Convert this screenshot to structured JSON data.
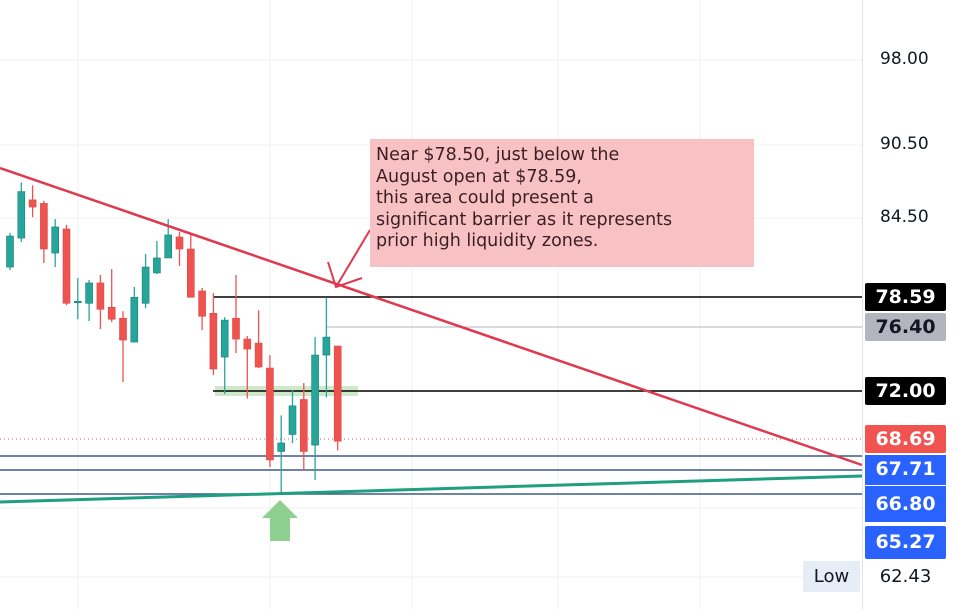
{
  "chart_data": {
    "type": "candlestick",
    "title": "",
    "price_axis_labels": [
      "98.00",
      "90.50",
      "84.50"
    ],
    "candles": [
      {
        "o": 80.83,
        "h": 83.38,
        "l": 80.61,
        "c": 83.15
      },
      {
        "o": 83.0,
        "h": 87.42,
        "l": 82.7,
        "c": 86.67
      },
      {
        "o": 85.99,
        "h": 87.19,
        "l": 84.57,
        "c": 85.4
      },
      {
        "o": 85.7,
        "h": 85.92,
        "l": 81.13,
        "c": 82.18
      },
      {
        "o": 81.88,
        "h": 84.42,
        "l": 80.83,
        "c": 83.83
      },
      {
        "o": 83.68,
        "h": 83.98,
        "l": 78.01,
        "c": 78.15
      },
      {
        "o": 78.22,
        "h": 80.01,
        "l": 77.03,
        "c": 78.29
      },
      {
        "o": 78.15,
        "h": 79.86,
        "l": 76.9,
        "c": 79.64
      },
      {
        "o": 79.64,
        "h": 80.24,
        "l": 76.34,
        "c": 77.73
      },
      {
        "o": 77.87,
        "h": 80.68,
        "l": 76.83,
        "c": 77.03
      },
      {
        "o": 77.1,
        "h": 77.59,
        "l": 72.63,
        "c": 75.57
      },
      {
        "o": 75.43,
        "h": 79.34,
        "l": 75.43,
        "c": 78.57
      },
      {
        "o": 78.15,
        "h": 81.81,
        "l": 77.8,
        "c": 80.83
      },
      {
        "o": 80.39,
        "h": 82.78,
        "l": 80.31,
        "c": 81.51
      },
      {
        "o": 81.51,
        "h": 84.42,
        "l": 81.51,
        "c": 83.23
      },
      {
        "o": 83.08,
        "h": 83.45,
        "l": 80.91,
        "c": 82.18
      },
      {
        "o": 82.18,
        "h": 83.23,
        "l": 78.57,
        "c": 78.57
      },
      {
        "o": 79.04,
        "h": 79.26,
        "l": 76.27,
        "c": 77.24
      },
      {
        "o": 77.45,
        "h": 78.89,
        "l": 73.12,
        "c": 73.54
      },
      {
        "o": 74.38,
        "h": 77.17,
        "l": 71.79,
        "c": 76.97
      },
      {
        "o": 77.1,
        "h": 80.24,
        "l": 74.66,
        "c": 75.64
      },
      {
        "o": 75.64,
        "h": 75.85,
        "l": 71.51,
        "c": 74.94
      },
      {
        "o": 75.36,
        "h": 77.66,
        "l": 73.61,
        "c": 73.68
      },
      {
        "o": 73.61,
        "h": 74.52,
        "l": 66.97,
        "c": 67.45
      },
      {
        "o": 68.01,
        "h": 70.39,
        "l": 65.27,
        "c": 68.57
      },
      {
        "o": 69.13,
        "h": 72.07,
        "l": 68.57,
        "c": 71.02
      },
      {
        "o": 71.44,
        "h": 72.56,
        "l": 66.76,
        "c": 68.01
      },
      {
        "o": 68.43,
        "h": 75.78,
        "l": 66.13,
        "c": 74.52
      },
      {
        "o": 74.52,
        "h": 78.57,
        "l": 71.58,
        "c": 75.78
      },
      {
        "o": 75.15,
        "h": 75.15,
        "l": 68.08,
        "c": 68.69
      }
    ],
    "price_tags": [
      {
        "value": "78.59",
        "bg": "#000000",
        "fg": "#ffffff"
      },
      {
        "value": "76.40",
        "bg": "#b2b5be",
        "fg": "#131722"
      },
      {
        "value": "72.00",
        "bg": "#000000",
        "fg": "#ffffff"
      },
      {
        "value": "68.69",
        "bg": "#f05350",
        "fg": "#ffffff"
      },
      {
        "value": "67.71",
        "bg": "#2962ff",
        "fg": "#ffffff"
      },
      {
        "value": "66.80",
        "bg": "#2962ff",
        "fg": "#ffffff"
      },
      {
        "value": "65.27",
        "bg": "#2962ff",
        "fg": "#ffffff"
      }
    ],
    "low": {
      "label": "Low",
      "value": "62.43"
    },
    "annotation": {
      "lines": [
        "Near $78.50, just below the",
        "August open at $78.59,",
        "this area could present a",
        "significant barrier as it represents",
        "prior high liquidity zones."
      ]
    },
    "colors": {
      "up": "#26a69a",
      "down": "#ef5350",
      "trendline_down": "#e0384e",
      "trendline_up": "#1f9e80",
      "support": "#3d5a8a",
      "annotation_bg": "#f8c1c4",
      "arrow_up": "#8fcf8f"
    },
    "grid": true
  }
}
